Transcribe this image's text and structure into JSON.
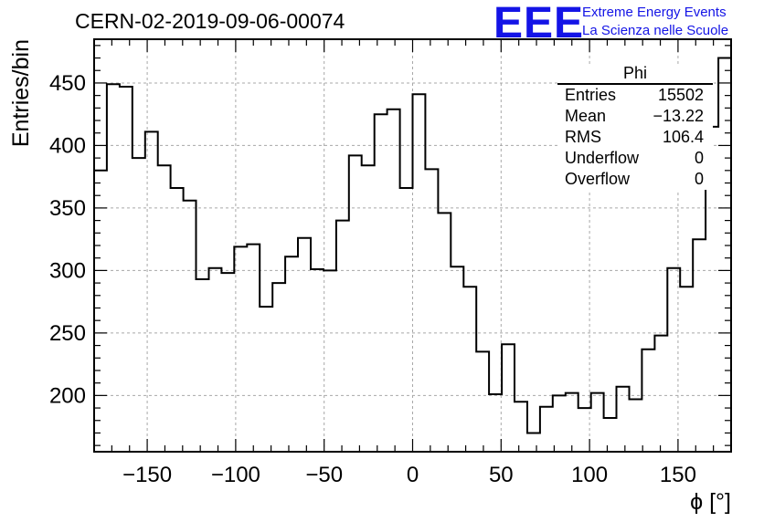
{
  "header": {
    "run_title": "CERN-02-2019-09-06-00074",
    "logo_mark": "EEE",
    "logo_line1": "Extreme Energy Events",
    "logo_line2": "La Scienza nelle Scuole",
    "logo_color": "#1414e6"
  },
  "stats_box": {
    "title": "Phi",
    "rows": [
      {
        "label": "Entries",
        "value": "15502"
      },
      {
        "label": "Mean",
        "value": "−13.22"
      },
      {
        "label": "RMS",
        "value": "106.4"
      },
      {
        "label": "Underflow",
        "value": "0"
      },
      {
        "label": "Overflow",
        "value": "0"
      }
    ]
  },
  "chart_data": {
    "type": "histogram",
    "xlabel": "ϕ [°]",
    "ylabel": "Entries/bin",
    "xlim": [
      -180,
      180
    ],
    "ylim": [
      155,
      485
    ],
    "bin_width": 7.2,
    "xticks": [
      -150,
      -100,
      -50,
      0,
      50,
      100,
      150
    ],
    "xtick_labels": [
      "−150",
      "−100",
      "−50",
      "0",
      "50",
      "100",
      "150"
    ],
    "yticks": [
      200,
      250,
      300,
      350,
      400,
      450
    ],
    "grid": true,
    "line_color": "#000000",
    "counts": [
      380,
      449,
      447,
      390,
      411,
      384,
      366,
      356,
      293,
      302,
      298,
      319,
      321,
      271,
      290,
      311,
      326,
      301,
      300,
      340,
      392,
      384,
      425,
      429,
      366,
      441,
      381,
      346,
      303,
      287,
      235,
      201,
      241,
      195,
      170,
      191,
      200,
      202,
      190,
      202,
      182,
      207,
      197,
      237,
      248,
      302,
      287,
      325,
      415,
      470
    ]
  }
}
